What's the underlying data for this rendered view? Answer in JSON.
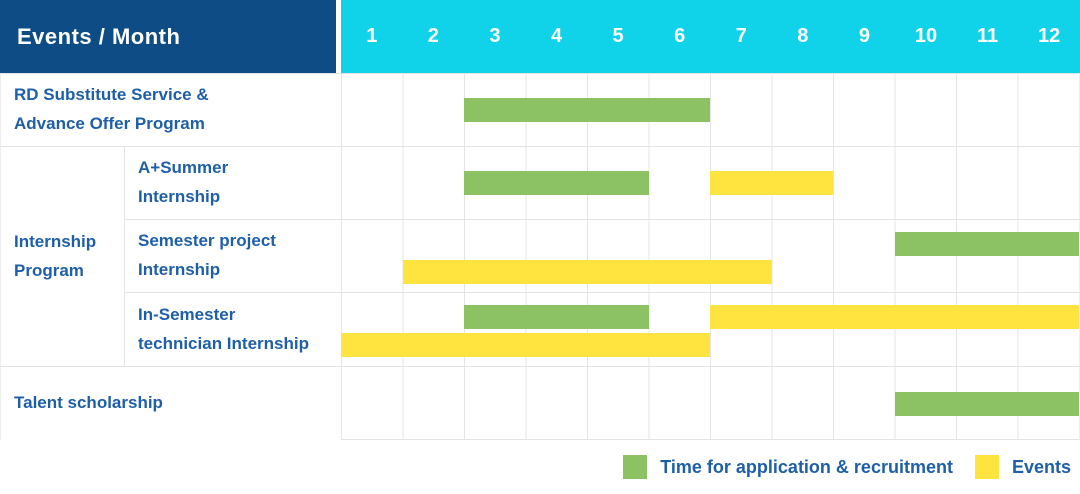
{
  "colors": {
    "navy": "#0e4c86",
    "cyan": "#10d3ea",
    "green": "#8cc264",
    "yellow": "#ffe33e",
    "text_blue": "#1e5fa8",
    "grid_line": "#e4e4e4"
  },
  "header": {
    "title": "Events / Month",
    "months": [
      "1",
      "2",
      "3",
      "4",
      "5",
      "6",
      "7",
      "8",
      "9",
      "10",
      "11",
      "12"
    ]
  },
  "labels": {
    "row1_line1": "RD Substitute Service &",
    "row1_line2": "Advance Offer Program",
    "group_line1": "Internship",
    "group_line2": "Program",
    "row2_line1": "A+Summer",
    "row2_line2": "Internship",
    "row3_line1": "Semester project",
    "row3_line2": "Internship",
    "row4_line1": "In-Semester",
    "row4_line2": "technician Internship",
    "row5": "Talent scholarship"
  },
  "legend": {
    "green_label": "Time for application & recruitment",
    "yellow_label": "Events"
  },
  "chart_data": {
    "type": "gantt",
    "x_axis": {
      "unit": "month",
      "range": [
        1,
        12
      ],
      "ticks": [
        1,
        2,
        3,
        4,
        5,
        6,
        7,
        8,
        9,
        10,
        11,
        12
      ]
    },
    "series_colors": {
      "Time for application & recruitment": "#8cc264",
      "Events": "#ffe33e"
    },
    "legend": [
      {
        "label": "Time for application & recruitment",
        "color": "#8cc264"
      },
      {
        "label": "Events",
        "color": "#ffe33e"
      }
    ],
    "rows": [
      {
        "group": null,
        "label": "RD Substitute Service & Advance Offer Program",
        "bars": [
          {
            "series": "Time for application & recruitment",
            "start_month": 3,
            "end_month": 6,
            "track": "center"
          }
        ]
      },
      {
        "group": "Internship Program",
        "label": "A+Summer Internship",
        "bars": [
          {
            "series": "Time for application & recruitment",
            "start_month": 3,
            "end_month": 5,
            "track": "center"
          },
          {
            "series": "Events",
            "start_month": 7,
            "end_month": 8,
            "track": "center"
          }
        ]
      },
      {
        "group": "Internship Program",
        "label": "Semester project Internship",
        "bars": [
          {
            "series": "Time for application & recruitment",
            "start_month": 10,
            "end_month": 12,
            "track": "top"
          },
          {
            "series": "Events",
            "start_month": 2,
            "end_month": 7,
            "track": "bottom"
          }
        ]
      },
      {
        "group": "Internship Program",
        "label": "In-Semester technician Internship",
        "bars": [
          {
            "series": "Time for application & recruitment",
            "start_month": 3,
            "end_month": 5,
            "track": "top"
          },
          {
            "series": "Events",
            "start_month": 7,
            "end_month": 12,
            "track": "top"
          },
          {
            "series": "Events",
            "start_month": 1,
            "end_month": 6,
            "track": "bottom"
          }
        ]
      },
      {
        "group": null,
        "label": "Talent scholarship",
        "bars": [
          {
            "series": "Time for application & recruitment",
            "start_month": 10,
            "end_month": 12,
            "track": "center"
          }
        ]
      }
    ]
  }
}
